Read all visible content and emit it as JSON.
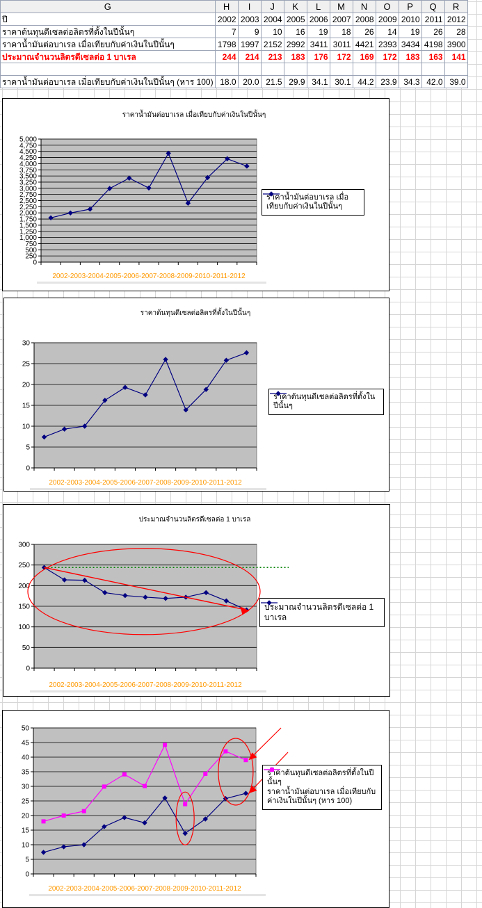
{
  "sheet": {
    "column_headers": [
      "G",
      "H",
      "I",
      "J",
      "K",
      "L",
      "M",
      "N",
      "O",
      "P",
      "Q",
      "R"
    ],
    "rows": [
      {
        "label": "ปี",
        "values": [
          "2002",
          "2003",
          "2004",
          "2005",
          "2006",
          "2007",
          "2008",
          "2009",
          "2010",
          "2011",
          "2012"
        ],
        "style": "normal"
      },
      {
        "label": "ราคาต้นทุนดีเซลต่อลิตรที่ตั้งในปีนั้นๆ",
        "values": [
          "7",
          "9",
          "10",
          "16",
          "19",
          "18",
          "26",
          "14",
          "19",
          "26",
          "28"
        ],
        "style": "normal"
      },
      {
        "label": "ราคาน้ำมันต่อบาเรล เมื่อเทียบกับค่าเงินในปีนั้นๆ",
        "values": [
          "1798",
          "1997",
          "2152",
          "2992",
          "3411",
          "3011",
          "4421",
          "2393",
          "3434",
          "4198",
          "3900"
        ],
        "style": "normal"
      },
      {
        "label": "ประมาณจำนวนลิตรดีเซลต่อ 1 บาเรล",
        "values": [
          "244",
          "214",
          "213",
          "183",
          "176",
          "172",
          "169",
          "172",
          "183",
          "163",
          "141"
        ],
        "style": "red"
      },
      {
        "label": "",
        "values": [
          "",
          "",
          "",
          "",
          "",
          "",
          "",
          "",
          "",
          "",
          ""
        ],
        "style": "blank"
      },
      {
        "label": "ราคาน้ำมันต่อบาเรล เมื่อเทียบกับค่าเงินในปีนั้นๆ (หาร 100)",
        "values": [
          "18.0",
          "20.0",
          "21.5",
          "29.9",
          "34.1",
          "30.1",
          "44.2",
          "23.9",
          "34.3",
          "42.0",
          "39.0"
        ],
        "style": "normal"
      }
    ]
  },
  "colors": {
    "series_blue": "#000080",
    "series_magenta": "#ff00ff",
    "plot_area": "#c0c0c0",
    "annotation_red": "#ff0000",
    "reference_green": "#008000",
    "category_label": "#ff9900"
  },
  "chart_data": [
    {
      "type": "line",
      "title": "ราคาน้ำมันต่อบาเรล เมื่อเทียบกับค่าเงินในปีนั้นๆ",
      "categories": [
        "2002",
        "2003",
        "2004",
        "2005",
        "2006",
        "2007",
        "2008",
        "2009",
        "2010",
        "2011",
        "2012"
      ],
      "series": [
        {
          "name": "ราคาน้ำมันต่อบาเรล เมื่อเทียบกับค่าเงินในปีนั้นๆ",
          "values": [
            1798,
            1997,
            2152,
            2992,
            3411,
            3011,
            4421,
            2393,
            3434,
            4198,
            3900
          ]
        }
      ],
      "ylim": [
        0,
        5000
      ],
      "yticks": [
        "0",
        "250",
        "500",
        "750",
        "1,000",
        "1,250",
        "1,500",
        "1,750",
        "2,000",
        "2,250",
        "2,500",
        "2,750",
        "3,000",
        "3,250",
        "3,500",
        "3,750",
        "4,000",
        "4,250",
        "4,500",
        "4,750",
        "5,000"
      ],
      "ytick_step": 250,
      "grid": true,
      "legend": "right"
    },
    {
      "type": "line",
      "title": "ราคาต้นทุนดีเซลต่อลิตรที่ตั้งในปีนั้นๆ",
      "categories": [
        "2002",
        "2003",
        "2004",
        "2005",
        "2006",
        "2007",
        "2008",
        "2009",
        "2010",
        "2011",
        "2012"
      ],
      "series": [
        {
          "name": "ราคาต้นทุนดีเซลต่อลิตรที่ตั้งในปีนั้นๆ",
          "values": [
            7.4,
            9.3,
            10,
            16.2,
            19.3,
            17.5,
            26,
            13.9,
            18.8,
            25.8,
            27.6
          ]
        }
      ],
      "ylim": [
        0,
        30
      ],
      "yticks": [
        "0",
        "5",
        "10",
        "15",
        "20",
        "25",
        "30"
      ],
      "ytick_step": 5,
      "grid": true,
      "legend": "right"
    },
    {
      "type": "line",
      "title": "ประมาณจำนวนลิตรดีเซลต่อ 1 บาเรล",
      "categories": [
        "2002",
        "2003",
        "2004",
        "2005",
        "2006",
        "2007",
        "2008",
        "2009",
        "2010",
        "2011",
        "2012"
      ],
      "series": [
        {
          "name": "ประมาณจำนวนลิตรดีเซลต่อ 1 บาเรล",
          "values": [
            244,
            214,
            213,
            183,
            176,
            172,
            169,
            172,
            183,
            163,
            141
          ]
        }
      ],
      "ylim": [
        0,
        300
      ],
      "yticks": [
        "0",
        "50",
        "100",
        "150",
        "200",
        "250",
        "300"
      ],
      "ytick_step": 50,
      "grid": true,
      "legend": "right",
      "annotations": {
        "reference_line_value": 244,
        "trend_arrow": [
          244,
          141
        ]
      }
    },
    {
      "type": "line",
      "title": "",
      "categories": [
        "2002",
        "2003",
        "2004",
        "2005",
        "2006",
        "2007",
        "2008",
        "2009",
        "2010",
        "2011",
        "2012"
      ],
      "series": [
        {
          "name": "ราคาต้นทุนดีเซลต่อลิตรที่ตั้งในปีนั้นๆ",
          "values": [
            7.4,
            9.3,
            10,
            16.2,
            19.3,
            17.5,
            26,
            13.9,
            18.8,
            25.8,
            27.6
          ]
        },
        {
          "name": "ราคาน้ำมันต่อบาเรล เมื่อเทียบกับค่าเงินในปีนั้นๆ (หาร 100)",
          "values": [
            18,
            20,
            21.5,
            29.9,
            34.1,
            30.1,
            44.2,
            23.9,
            34.3,
            42,
            39
          ]
        }
      ],
      "ylim": [
        0,
        50
      ],
      "yticks": [
        "0",
        "5",
        "10",
        "15",
        "20",
        "25",
        "30",
        "35",
        "40",
        "45",
        "50"
      ],
      "ytick_step": 5,
      "grid": true,
      "legend": "right"
    }
  ]
}
